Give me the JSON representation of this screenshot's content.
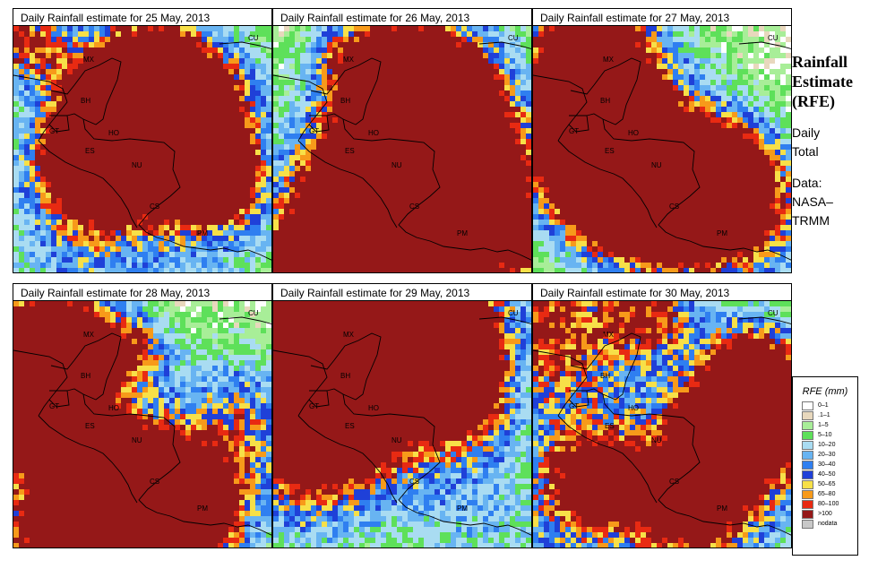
{
  "panels": [
    {
      "title": "Daily Rainfall estimate for  25 May, 2013",
      "seed": 25
    },
    {
      "title": "Daily Rainfall estimate for  26 May, 2013",
      "seed": 26
    },
    {
      "title": "Daily Rainfall estimate for  27 May, 2013",
      "seed": 27
    },
    {
      "title": "Daily Rainfall estimate for  28 May, 2013",
      "seed": 28
    },
    {
      "title": "Daily Rainfall estimate for  29 May, 2013",
      "seed": 29
    },
    {
      "title": "Daily Rainfall estimate for  30 May, 2013",
      "seed": 30
    }
  ],
  "map_labels": [
    "MX",
    "CU",
    "BH",
    "GT",
    "HO",
    "ES",
    "NU",
    "CS",
    "PM"
  ],
  "side": {
    "title_line1": "Rainfall",
    "title_line2": "Estimate",
    "title_line3": "(RFE)",
    "daily_line1": "Daily",
    "daily_line2": "Total",
    "data_line1": "Data:",
    "data_line2": "NASA–",
    "data_line3": "TRMM"
  },
  "legend": {
    "title": "RFE (mm)",
    "items": [
      {
        "label": "0–1",
        "color": "#ffffff"
      },
      {
        "label": ".1–1",
        "color": "#e8d8bd"
      },
      {
        "label": "1–5",
        "color": "#a8ee98"
      },
      {
        "label": "5–10",
        "color": "#5ee05a"
      },
      {
        "label": "10–20",
        "color": "#a9dcf2"
      },
      {
        "label": "20–30",
        "color": "#68b4f2"
      },
      {
        "label": "30–40",
        "color": "#2f7ff0"
      },
      {
        "label": "40–50",
        "color": "#1f40d8"
      },
      {
        "label": "50–65",
        "color": "#f7e048"
      },
      {
        "label": "65–80",
        "color": "#f79a1a"
      },
      {
        "label": "80–100",
        "color": "#e82a12"
      },
      {
        "label": ">100",
        "color": "#951818"
      },
      {
        "label": "nodata",
        "color": "#c8c8c8"
      }
    ]
  }
}
